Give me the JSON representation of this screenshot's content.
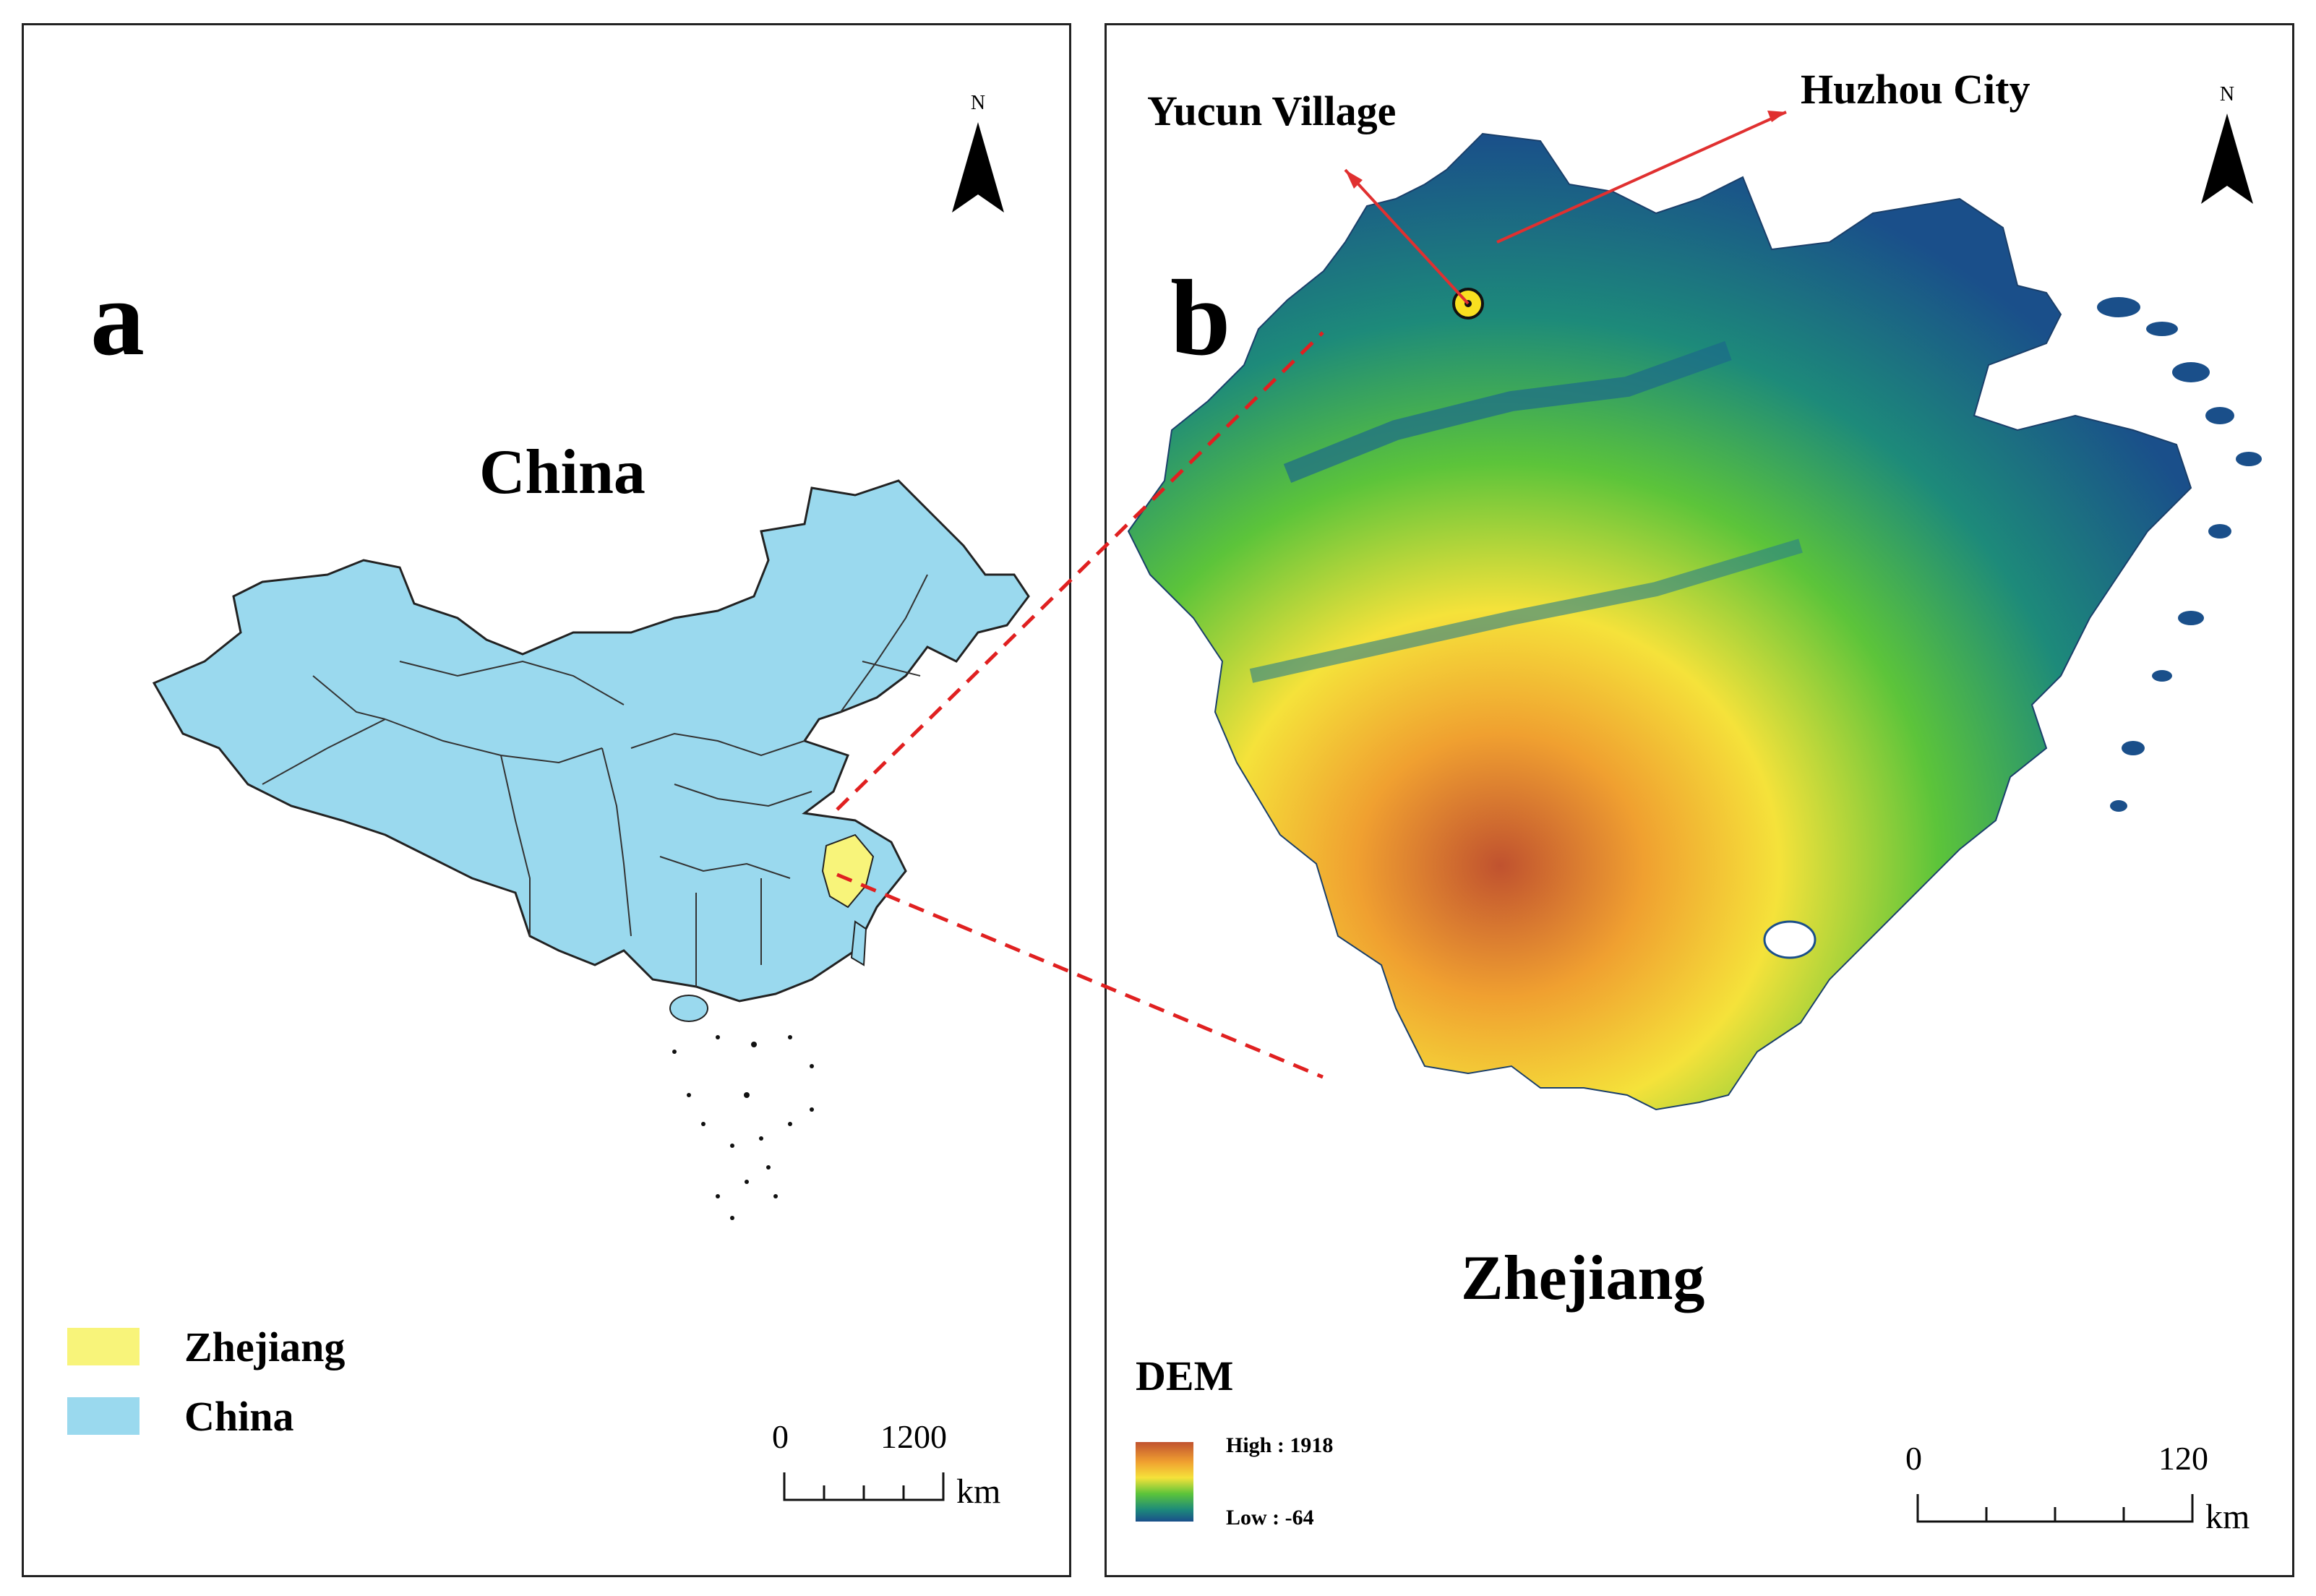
{
  "panel_a": {
    "letter": "a",
    "title": "China",
    "north_label": "N",
    "legend": [
      {
        "label": "Zhejiang",
        "color": "#f8f47a"
      },
      {
        "label": "China",
        "color": "#9ad9ee"
      }
    ],
    "scale": {
      "start": "0",
      "end": "1200",
      "unit": "km"
    }
  },
  "panel_b": {
    "letter": "b",
    "title": "Zhejiang",
    "north_label": "N",
    "annotations": {
      "village": "Yucun Village",
      "city": "Huzhou City"
    },
    "dem": {
      "title": "DEM",
      "high": "High : 1918",
      "low": "Low : -64",
      "colors": [
        "#c0522f",
        "#f0a030",
        "#f5e23a",
        "#5cc43a",
        "#1d8a7a",
        "#1a4f8a"
      ]
    },
    "scale": {
      "start": "0",
      "end": "120",
      "unit": "km"
    }
  },
  "colors": {
    "china_fill": "#9ad9ee",
    "zhejiang_fill": "#f8f47a",
    "pointer": "#e03030",
    "connector": "#e02020"
  }
}
